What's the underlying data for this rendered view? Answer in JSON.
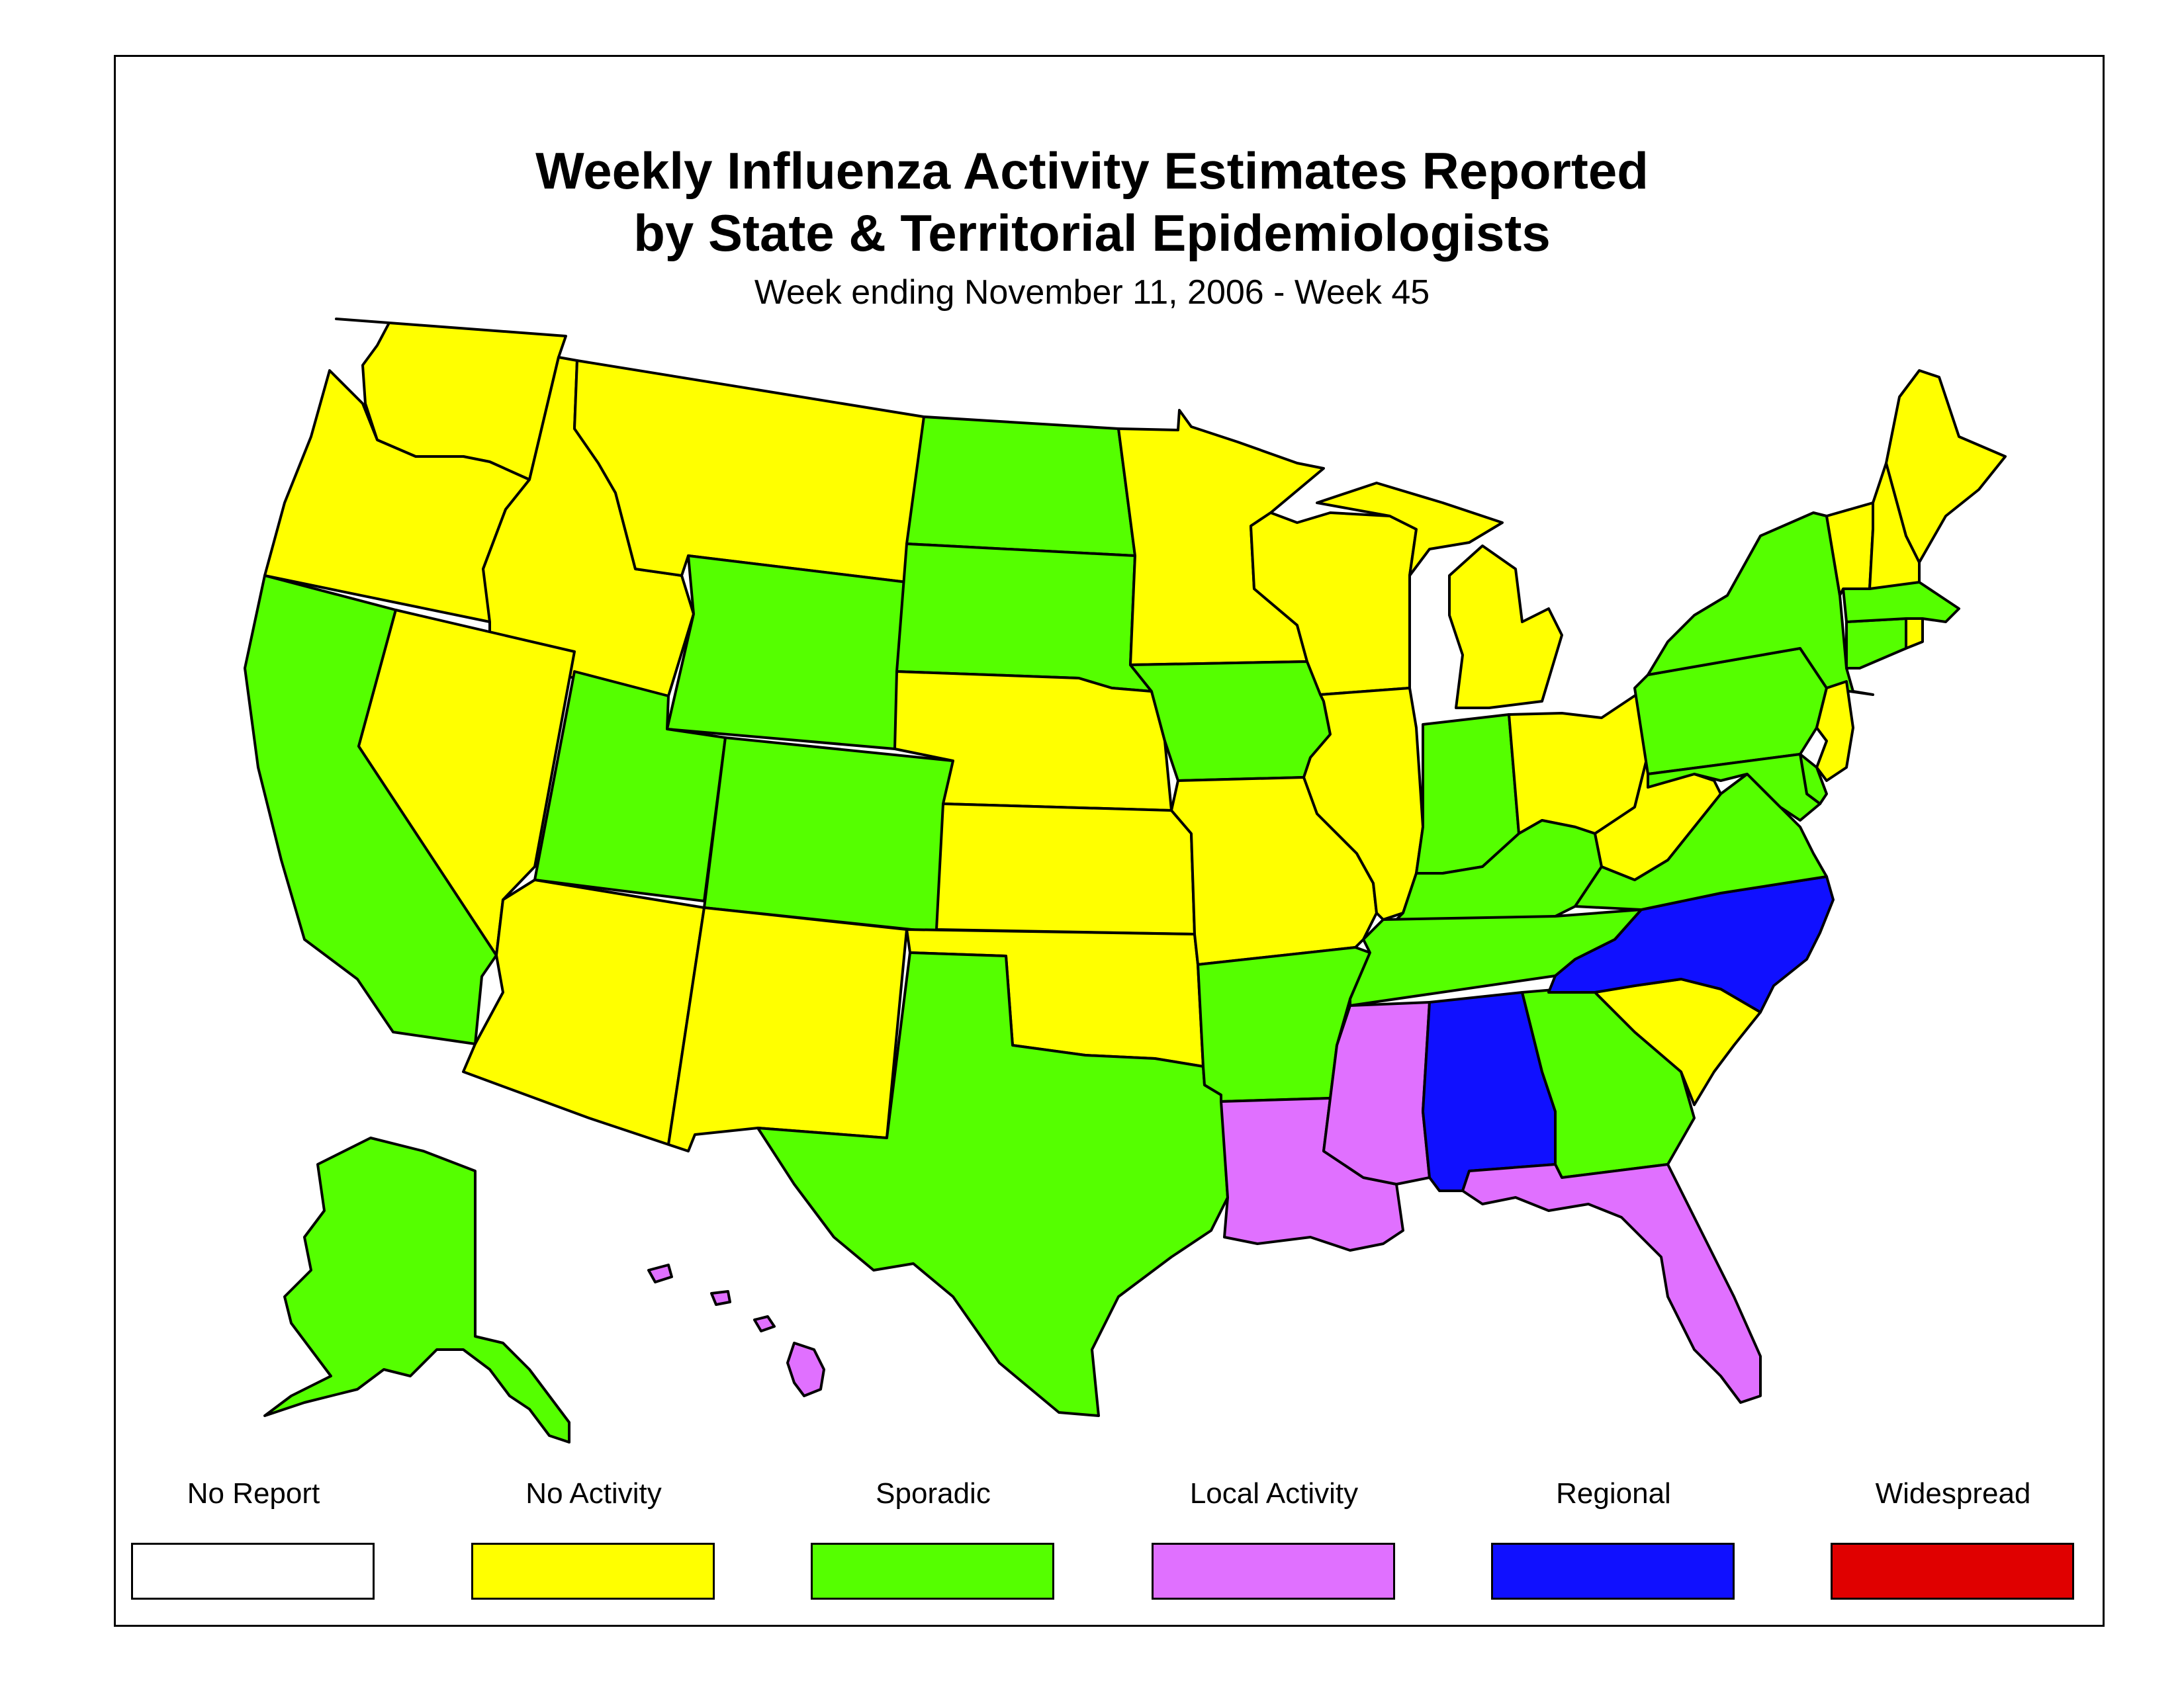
{
  "title_line1": "Weekly Influenza Activity Estimates Reported",
  "title_line2": "by State & Territorial Epidemiologists",
  "subtitle": "Week ending November 11, 2006 - Week 45",
  "legend": [
    {
      "label": "No Report",
      "color": "#ffffff"
    },
    {
      "label": "No Activity",
      "color": "#ffff00"
    },
    {
      "label": "Sporadic",
      "color": "#55ff00"
    },
    {
      "label": "Local Activity",
      "color": "#e070ff"
    },
    {
      "label": "Regional",
      "color": "#1010ff"
    },
    {
      "label": "Widespread",
      "color": "#e00000"
    }
  ],
  "states": {
    "WA": "No Activity",
    "OR": "No Activity",
    "CA": "Sporadic",
    "ID": "No Activity",
    "NV": "No Activity",
    "MT": "No Activity",
    "WY": "Sporadic",
    "UT": "Sporadic",
    "AZ": "No Activity",
    "CO": "Sporadic",
    "NM": "No Activity",
    "ND": "Sporadic",
    "SD": "Sporadic",
    "NE": "No Activity",
    "KS": "No Activity",
    "OK": "No Activity",
    "TX": "Sporadic",
    "MN": "No Activity",
    "IA": "Sporadic",
    "MO": "No Activity",
    "AR": "Sporadic",
    "LA": "Local Activity",
    "WI": "No Activity",
    "IL": "No Activity",
    "MI": "No Activity",
    "IN": "Sporadic",
    "OH": "No Activity",
    "KY": "Sporadic",
    "TN": "Sporadic",
    "MS": "Local Activity",
    "AL": "Regional",
    "GA": "Sporadic",
    "FL": "Local Activity",
    "SC": "No Activity",
    "NC": "Regional",
    "VA": "Sporadic",
    "WV": "No Activity",
    "PA": "Sporadic",
    "NY": "Sporadic",
    "NJ": "No Activity",
    "DE": "Sporadic",
    "MD": "Sporadic",
    "CT": "Sporadic",
    "RI": "No Activity",
    "MA": "Sporadic",
    "VT": "No Activity",
    "NH": "No Activity",
    "ME": "No Activity",
    "AK": "Sporadic",
    "HI": "Local Activity"
  }
}
